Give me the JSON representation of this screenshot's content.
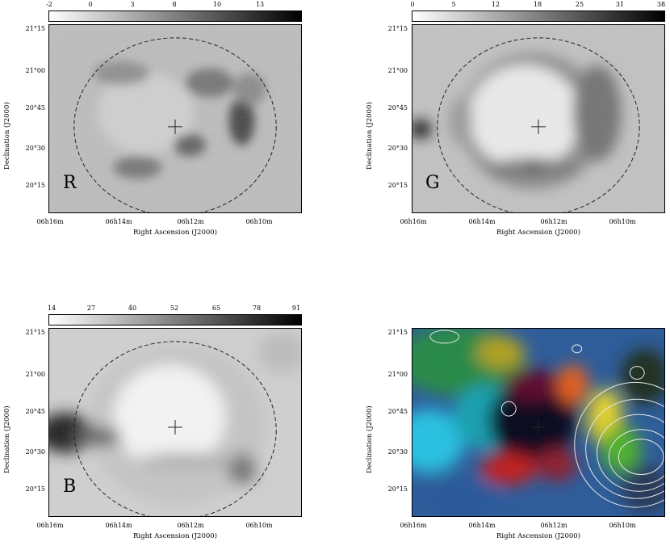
{
  "panels": [
    {
      "id": "R",
      "letter": "R",
      "colorbar_ticks": [
        "-2",
        "0",
        "3",
        "8",
        "10",
        "13"
      ],
      "y_ticks": [
        "21°15",
        "21°00",
        "20°45",
        "20°30",
        "20°15"
      ],
      "x_ticks": [
        "06h16m",
        "06h14m",
        "06h12m",
        "06h10m"
      ],
      "ylabel": "Declination (J2000)",
      "xlabel": "Right Ascension (J2000)"
    },
    {
      "id": "G",
      "letter": "G",
      "colorbar_ticks": [
        "0",
        "5",
        "12",
        "18",
        "25",
        "31",
        "38"
      ],
      "y_ticks": [
        "21°15",
        "21°00",
        "20°45",
        "20°30",
        "20°15"
      ],
      "x_ticks": [
        "06h16m",
        "06h14m",
        "06h12m",
        "06h10m"
      ],
      "ylabel": "Declination (J2000)",
      "xlabel": "Right Ascension (J2000)"
    },
    {
      "id": "B",
      "letter": "B",
      "colorbar_ticks": [
        "14",
        "27",
        "40",
        "52",
        "65",
        "78",
        "91"
      ],
      "y_ticks": [
        "21°15",
        "21°00",
        "20°45",
        "20°30",
        "20°15"
      ],
      "x_ticks": [
        "06h16m",
        "06h14m",
        "06h12m",
        "06h10m"
      ],
      "ylabel": "Declination (J2000)",
      "xlabel": "Right Ascension (J2000)"
    },
    {
      "id": "RGB",
      "letter": "",
      "colorbar_ticks": [],
      "y_ticks": [
        "21°15",
        "21°00",
        "20°45",
        "20°30",
        "20°15"
      ],
      "x_ticks": [
        "06h16m",
        "06h14m",
        "06h12m",
        "06h10m"
      ],
      "ylabel": "Declination (J2000)",
      "xlabel": "Right Ascension (J2000)"
    }
  ],
  "colors": {
    "contour": "#e8e8e8",
    "dashed_circle": "#222222"
  }
}
